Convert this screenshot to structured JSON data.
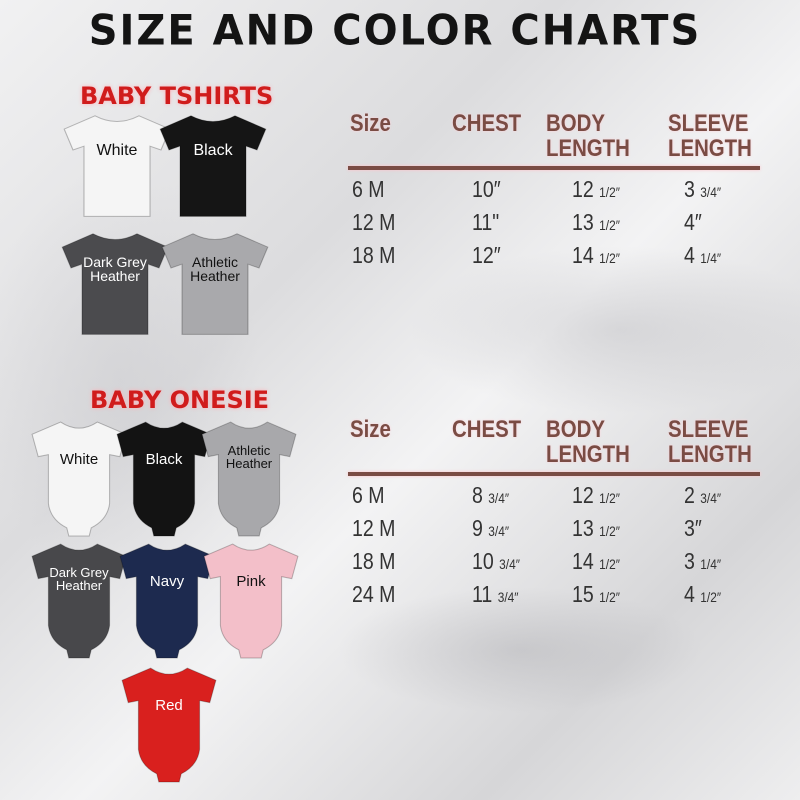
{
  "title": "SIZE AND COLOR CHARTS",
  "tshirts": {
    "heading": "BABY TSHIRTS",
    "items": [
      {
        "label": "White",
        "color": "#f5f5f5",
        "text": "#111111"
      },
      {
        "label": "Black",
        "color": "#151515",
        "text": "#ffffff"
      },
      {
        "label": "Dark Grey Heather",
        "color": "#4b4b4e",
        "text": "#ffffff"
      },
      {
        "label": "Athletic Heather",
        "color": "#a9a9ac",
        "text": "#111111"
      }
    ],
    "table": {
      "headers": [
        [
          "Size"
        ],
        [
          "CHEST"
        ],
        [
          "BODY",
          "LENGTH"
        ],
        [
          "SLEEVE",
          "LENGTH"
        ]
      ],
      "rows": [
        [
          [
            "6 M",
            ""
          ],
          [
            "10″",
            ""
          ],
          [
            "12 ",
            "1/2″"
          ],
          [
            "3 ",
            "3/4″"
          ]
        ],
        [
          [
            "12 M",
            ""
          ],
          [
            "11\"",
            ""
          ],
          [
            "13 ",
            "1/2″"
          ],
          [
            "4″",
            ""
          ]
        ],
        [
          [
            "18 M",
            ""
          ],
          [
            "12″",
            ""
          ],
          [
            "14 ",
            "1/2″"
          ],
          [
            "4 ",
            "1/4″"
          ]
        ]
      ]
    }
  },
  "onesies": {
    "heading": "BABY ONESIE",
    "items": [
      {
        "label": "White",
        "color": "#f5f5f5",
        "text": "#111111"
      },
      {
        "label": "Black",
        "color": "#131313",
        "text": "#ffffff"
      },
      {
        "label": "Athletic Heather",
        "color": "#a8a8ab",
        "text": "#111111"
      },
      {
        "label": "Dark Grey Heather",
        "color": "#48484b",
        "text": "#ffffff"
      },
      {
        "label": "Navy",
        "color": "#1d2a4f",
        "text": "#ffffff"
      },
      {
        "label": "Pink",
        "color": "#f3bfc9",
        "text": "#111111"
      },
      {
        "label": "Red",
        "color": "#d9201e",
        "text": "#ffffff"
      }
    ],
    "table": {
      "headers": [
        [
          "Size"
        ],
        [
          "CHEST"
        ],
        [
          "BODY",
          "LENGTH"
        ],
        [
          "SLEEVE",
          "LENGTH"
        ]
      ],
      "rows": [
        [
          [
            "6 M",
            ""
          ],
          [
            "8 ",
            "3/4″"
          ],
          [
            "12 ",
            "1/2″"
          ],
          [
            "2 ",
            "3/4″"
          ]
        ],
        [
          [
            "12 M",
            ""
          ],
          [
            "9 ",
            "3/4″"
          ],
          [
            "13 ",
            "1/2″"
          ],
          [
            "3″",
            ""
          ]
        ],
        [
          [
            "18 M",
            ""
          ],
          [
            "10 ",
            "3/4″"
          ],
          [
            "14 ",
            "1/2″"
          ],
          [
            "3 ",
            "1/4″"
          ]
        ],
        [
          [
            "24 M",
            ""
          ],
          [
            "11 ",
            "3/4″"
          ],
          [
            "15 ",
            "1/2″"
          ],
          [
            "4 ",
            "1/2″"
          ]
        ]
      ]
    }
  }
}
